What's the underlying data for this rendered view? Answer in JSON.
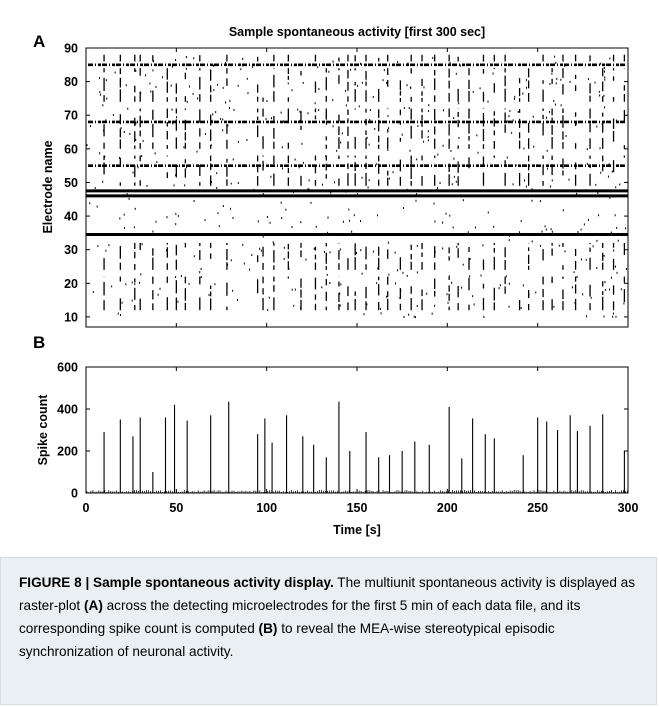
{
  "panel_a_letter": "A",
  "panel_b_letter": "B",
  "caption": {
    "label": "FIGURE 8 | Sample spontaneous activity display.",
    "part1": " The multiunit spontaneous activity is displayed as raster-plot ",
    "ref_a": "(A)",
    "part2": " across the detecting microelectrodes for the first 5 min of each data file, and its corresponding spike count is computed ",
    "ref_b": "(B)",
    "part3": " to reveal the MEA-wise stereotypical episodic synchronization of neuronal activity."
  },
  "chart_data": [
    {
      "type": "scatter",
      "title": "Sample spontaneous activity [first 300 sec]",
      "xlabel": "",
      "ylabel": "Electrode name",
      "xlim": [
        0,
        300
      ],
      "ylim": [
        7,
        90
      ],
      "yticks": [
        10,
        20,
        30,
        40,
        50,
        60,
        70,
        80,
        90
      ],
      "grid": false,
      "continuous_rows": [
        34.5,
        46,
        47.5
      ],
      "dense_rows": [
        85,
        68,
        55
      ],
      "burst_times": [
        10,
        19,
        27,
        30,
        37,
        45,
        50,
        55,
        63,
        69,
        78,
        95,
        98,
        104,
        112,
        119,
        127,
        133,
        140,
        145,
        149,
        155,
        162,
        167,
        174,
        180,
        186,
        193,
        201,
        206,
        212,
        220,
        226,
        232,
        240,
        245,
        253,
        258,
        264,
        271,
        279,
        286,
        292,
        298
      ]
    },
    {
      "type": "bar",
      "title": "",
      "xlabel": "Time [s]",
      "ylabel": "Spike count",
      "xlim": [
        0,
        300
      ],
      "ylim": [
        0,
        600
      ],
      "xticks": [
        0,
        50,
        100,
        150,
        200,
        250,
        300
      ],
      "yticks": [
        0,
        200,
        400,
        600
      ],
      "grid": false,
      "peaks": [
        {
          "x": 10,
          "y": 290
        },
        {
          "x": 19,
          "y": 350
        },
        {
          "x": 26,
          "y": 270
        },
        {
          "x": 30,
          "y": 360
        },
        {
          "x": 37,
          "y": 100
        },
        {
          "x": 44,
          "y": 360
        },
        {
          "x": 49,
          "y": 420
        },
        {
          "x": 56,
          "y": 345
        },
        {
          "x": 69,
          "y": 370
        },
        {
          "x": 79,
          "y": 435
        },
        {
          "x": 95,
          "y": 280
        },
        {
          "x": 99,
          "y": 355
        },
        {
          "x": 103,
          "y": 240
        },
        {
          "x": 111,
          "y": 370
        },
        {
          "x": 120,
          "y": 270
        },
        {
          "x": 126,
          "y": 230
        },
        {
          "x": 133,
          "y": 170
        },
        {
          "x": 140,
          "y": 435
        },
        {
          "x": 146,
          "y": 200
        },
        {
          "x": 155,
          "y": 290
        },
        {
          "x": 162,
          "y": 170
        },
        {
          "x": 168,
          "y": 180
        },
        {
          "x": 175,
          "y": 200
        },
        {
          "x": 182,
          "y": 245
        },
        {
          "x": 190,
          "y": 230
        },
        {
          "x": 201,
          "y": 410
        },
        {
          "x": 208,
          "y": 165
        },
        {
          "x": 214,
          "y": 355
        },
        {
          "x": 221,
          "y": 280
        },
        {
          "x": 226,
          "y": 260
        },
        {
          "x": 242,
          "y": 180
        },
        {
          "x": 250,
          "y": 360
        },
        {
          "x": 255,
          "y": 340
        },
        {
          "x": 261,
          "y": 300
        },
        {
          "x": 268,
          "y": 370
        },
        {
          "x": 272,
          "y": 295
        },
        {
          "x": 279,
          "y": 320
        },
        {
          "x": 286,
          "y": 375
        },
        {
          "x": 298,
          "y": 200
        }
      ]
    }
  ]
}
